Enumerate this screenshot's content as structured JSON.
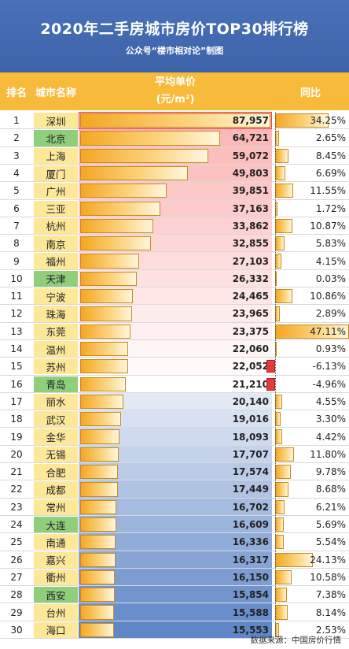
{
  "title": "2020年二手房城市房价TOP30排行榜",
  "subtitle": "公众号“楼市相对论”制图",
  "headers": {
    "rank": "排名",
    "city": "城市名称",
    "avg_line1": "平均单价",
    "avg_line2": "(元/m²)",
    "yoy": "同比"
  },
  "source": "数据来源：中国房价行情",
  "chart_data": {
    "type": "table",
    "columns": [
      "排名",
      "城市名称",
      "平均单价(元/m²)",
      "同比"
    ],
    "rows": [
      {
        "rank": "1",
        "city": "深圳",
        "price": 87957,
        "price_label": "87,957",
        "yoy": 34.25,
        "yoy_label": "34.25%"
      },
      {
        "rank": "2",
        "city": "北京",
        "price": 64721,
        "price_label": "64,721",
        "yoy": 2.65,
        "yoy_label": "2.65%"
      },
      {
        "rank": "3",
        "city": "上海",
        "price": 59072,
        "price_label": "59,072",
        "yoy": 8.45,
        "yoy_label": "8.45%"
      },
      {
        "rank": "4",
        "city": "厦门",
        "price": 49803,
        "price_label": "49,803",
        "yoy": 6.69,
        "yoy_label": "6.69%"
      },
      {
        "rank": "5",
        "city": "广州",
        "price": 39851,
        "price_label": "39,851",
        "yoy": 11.55,
        "yoy_label": "11.55%"
      },
      {
        "rank": "6",
        "city": "三亚",
        "price": 37163,
        "price_label": "37,163",
        "yoy": 1.72,
        "yoy_label": "1.72%"
      },
      {
        "rank": "7",
        "city": "杭州",
        "price": 33862,
        "price_label": "33,862",
        "yoy": 10.87,
        "yoy_label": "10.87%"
      },
      {
        "rank": "8",
        "city": "南京",
        "price": 32855,
        "price_label": "32,855",
        "yoy": 5.83,
        "yoy_label": "5.83%"
      },
      {
        "rank": "9",
        "city": "福州",
        "price": 27103,
        "price_label": "27,103",
        "yoy": 4.15,
        "yoy_label": "4.15%"
      },
      {
        "rank": "10",
        "city": "天津",
        "price": 26332,
        "price_label": "26,332",
        "yoy": 0.03,
        "yoy_label": "0.03%"
      },
      {
        "rank": "11",
        "city": "宁波",
        "price": 24465,
        "price_label": "24,465",
        "yoy": 10.86,
        "yoy_label": "10.86%"
      },
      {
        "rank": "12",
        "city": "珠海",
        "price": 23965,
        "price_label": "23,965",
        "yoy": 2.89,
        "yoy_label": "2.89%"
      },
      {
        "rank": "13",
        "city": "东莞",
        "price": 23375,
        "price_label": "23,375",
        "yoy": 47.11,
        "yoy_label": "47.11%"
      },
      {
        "rank": "14",
        "city": "温州",
        "price": 22060,
        "price_label": "22,060",
        "yoy": 0.93,
        "yoy_label": "0.93%"
      },
      {
        "rank": "15",
        "city": "苏州",
        "price": 22052,
        "price_label": "22,052",
        "yoy": -6.13,
        "yoy_label": "-6.13%"
      },
      {
        "rank": "16",
        "city": "青岛",
        "price": 21210,
        "price_label": "21,210",
        "yoy": -4.96,
        "yoy_label": "-4.96%"
      },
      {
        "rank": "17",
        "city": "丽水",
        "price": 20140,
        "price_label": "20,140",
        "yoy": 4.55,
        "yoy_label": "4.55%"
      },
      {
        "rank": "18",
        "city": "武汉",
        "price": 19016,
        "price_label": "19,016",
        "yoy": 3.3,
        "yoy_label": "3.30%"
      },
      {
        "rank": "19",
        "city": "金华",
        "price": 18093,
        "price_label": "18,093",
        "yoy": 4.42,
        "yoy_label": "4.42%"
      },
      {
        "rank": "20",
        "city": "无锡",
        "price": 17707,
        "price_label": "17,707",
        "yoy": 11.8,
        "yoy_label": "11.80%"
      },
      {
        "rank": "21",
        "city": "合肥",
        "price": 17574,
        "price_label": "17,574",
        "yoy": 9.78,
        "yoy_label": "9.78%"
      },
      {
        "rank": "22",
        "city": "成都",
        "price": 17449,
        "price_label": "17,449",
        "yoy": 8.68,
        "yoy_label": "8.68%"
      },
      {
        "rank": "23",
        "city": "常州",
        "price": 16702,
        "price_label": "16,702",
        "yoy": 6.21,
        "yoy_label": "6.21%"
      },
      {
        "rank": "24",
        "city": "大连",
        "price": 16609,
        "price_label": "16,609",
        "yoy": 5.69,
        "yoy_label": "5.69%"
      },
      {
        "rank": "25",
        "city": "南通",
        "price": 16336,
        "price_label": "16,336",
        "yoy": 5.54,
        "yoy_label": "5.54%"
      },
      {
        "rank": "26",
        "city": "嘉兴",
        "price": 16317,
        "price_label": "16,317",
        "yoy": 24.13,
        "yoy_label": "24.13%"
      },
      {
        "rank": "27",
        "city": "衢州",
        "price": 16150,
        "price_label": "16,150",
        "yoy": 10.58,
        "yoy_label": "10.58%"
      },
      {
        "rank": "28",
        "city": "西安",
        "price": 15854,
        "price_label": "15,854",
        "yoy": 7.38,
        "yoy_label": "7.38%"
      },
      {
        "rank": "29",
        "city": "台州",
        "price": 15588,
        "price_label": "15,588",
        "yoy": 8.14,
        "yoy_label": "8.14%"
      },
      {
        "rank": "30",
        "city": "海口",
        "price": 15553,
        "price_label": "15,553",
        "yoy": 2.53,
        "yoy_label": "2.53%"
      }
    ]
  },
  "colors": {
    "header_blue": "#3c62a8",
    "column_header": "#f7ba3a",
    "city_green": "#8fce7a",
    "city_yellow": "#fde89a",
    "bar_orange": "#f5a623",
    "negative_red": "#e53a3a"
  }
}
